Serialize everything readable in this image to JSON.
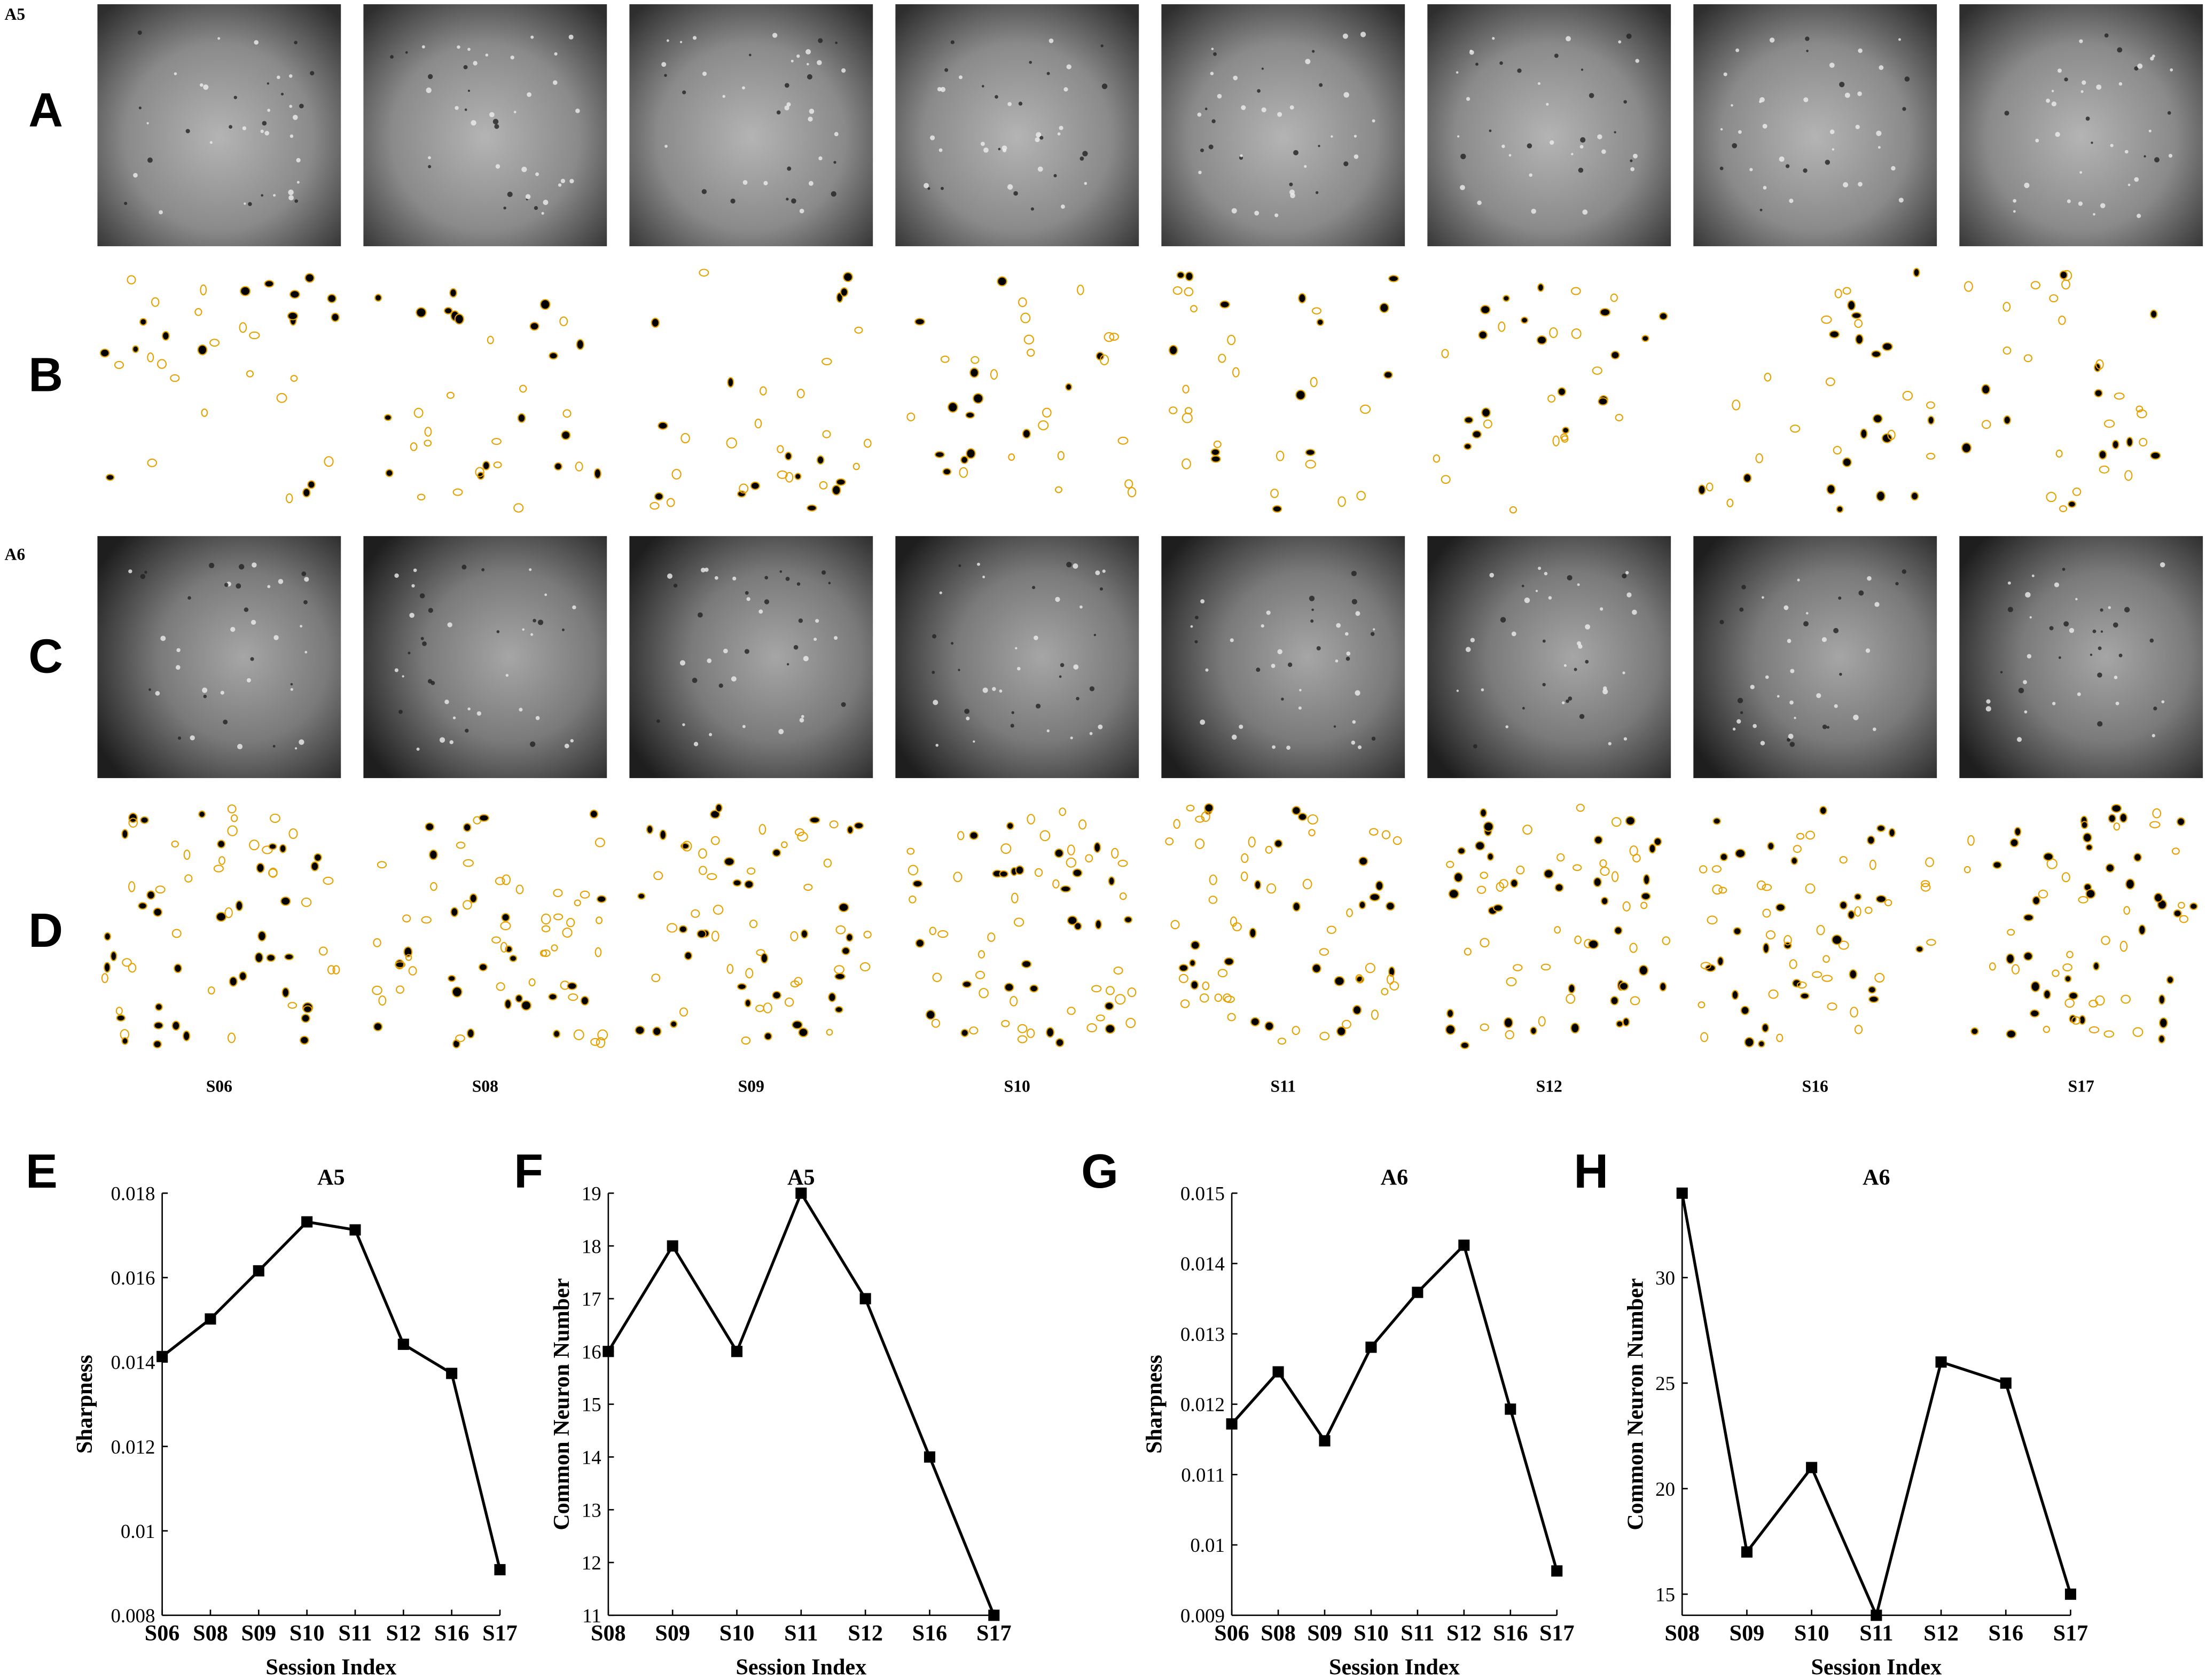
{
  "animal_labels": [
    "A5",
    "A6"
  ],
  "panel_labels": [
    "A",
    "B",
    "C",
    "D",
    "E",
    "F",
    "G",
    "H"
  ],
  "sessions": [
    "S06",
    "S08",
    "S09",
    "S10",
    "S11",
    "S12",
    "S16",
    "S17"
  ],
  "chart_data": [
    {
      "type": "line",
      "title": "A5",
      "x_label": "Session Index",
      "y_label": "Sharpness",
      "categories": [
        "S06",
        "S08",
        "S09",
        "S10",
        "S11",
        "S12",
        "S16",
        "S17"
      ],
      "values": [
        0.01413,
        0.01502,
        0.01616,
        0.01732,
        0.01713,
        0.01442,
        0.01373,
        0.00908
      ],
      "color": "#000000",
      "ylim": [
        0.008,
        0.018
      ],
      "yticks": [
        0.008,
        0.01,
        0.012,
        0.014,
        0.016,
        0.018
      ]
    },
    {
      "type": "line",
      "title": "A5",
      "x_label": "Session Index",
      "y_label": "Common Neuron Number",
      "categories": [
        "S08",
        "S09",
        "S10",
        "S11",
        "S12",
        "S16",
        "S17"
      ],
      "values": [
        16,
        18,
        16,
        19,
        17,
        14,
        11
      ],
      "color": "#000000",
      "ylim": [
        11,
        19
      ],
      "yticks": [
        11,
        12,
        13,
        14,
        15,
        16,
        17,
        18,
        19
      ]
    },
    {
      "type": "line",
      "title": "A6",
      "x_label": "Session Index",
      "y_label": "Sharpness",
      "categories": [
        "S06",
        "S08",
        "S09",
        "S10",
        "S11",
        "S12",
        "S16",
        "S17"
      ],
      "values": [
        0.01172,
        0.01246,
        0.01148,
        0.01281,
        0.01359,
        0.01426,
        0.01193,
        0.00963
      ],
      "color": "#000000",
      "ylim": [
        0.009,
        0.015
      ],
      "yticks": [
        0.009,
        0.01,
        0.011,
        0.012,
        0.013,
        0.014,
        0.015
      ]
    },
    {
      "type": "line",
      "title": "A6",
      "x_label": "Session Index",
      "y_label": "Common Neuron Number",
      "categories": [
        "S08",
        "S09",
        "S10",
        "S11",
        "S12",
        "S16",
        "S17"
      ],
      "values": [
        34,
        17,
        21,
        14,
        26,
        25,
        15
      ],
      "color": "#000000",
      "ylim": [
        14,
        34
      ],
      "yticks": [
        15,
        20,
        25,
        30
      ]
    }
  ]
}
